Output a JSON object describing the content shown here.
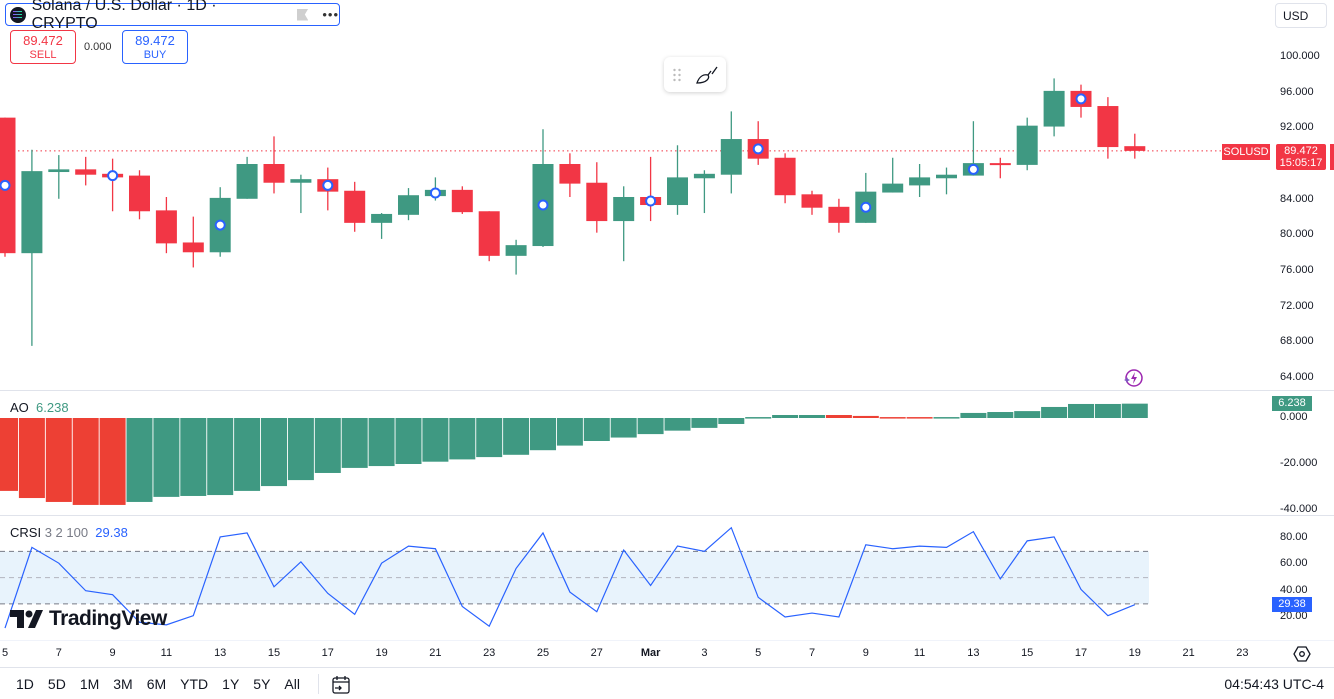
{
  "header": {
    "symbol_title": "Solana / U.S. Dollar · 1D · CRYPTO",
    "more_label": "•••",
    "sell_price": "89.472",
    "sell_label": "SELL",
    "spread": "0.000",
    "buy_price": "89.472",
    "buy_label": "BUY",
    "currency": "USD"
  },
  "icons": {
    "symbol_logo": "solana-logo",
    "flag": "flag-icon",
    "drag": "drag-handle-icon",
    "brush": "brush-icon",
    "lightning": "lightning-icon",
    "settings": "gear-icon",
    "calendar": "calendar-goto-icon"
  },
  "colors": {
    "up": "#3f9982",
    "down": "#f23645",
    "ao_up": "#3f9982",
    "ao_down": "#ed4034",
    "crsi_line": "#2962ff",
    "crsi_band": "#e8f3fc",
    "marker": "#2962ff",
    "accent": "#2962ff"
  },
  "price_axis": {
    "labels": [
      "100.000",
      "96.000",
      "92.000",
      "84.000",
      "80.000",
      "76.000",
      "72.000",
      "68.000",
      "64.000"
    ],
    "values": [
      100,
      96,
      92,
      84,
      80,
      76,
      72,
      68,
      64
    ]
  },
  "last_price": {
    "symbol": "SOLUSD",
    "price": "89.472",
    "countdown": "15:05:17",
    "value": 89.472
  },
  "ao": {
    "title": "AO",
    "value": "6.238",
    "axis_labels": [
      "0.000",
      "-20.000",
      "-40.000"
    ],
    "axis_values": [
      0,
      -20,
      -40
    ]
  },
  "crsi": {
    "title": "CRSI",
    "params": "3 2 100",
    "value": "29.38",
    "axis_labels": [
      "80.00",
      "60.00",
      "40.00",
      "20.00"
    ],
    "axis_values": [
      80,
      60,
      40,
      20
    ],
    "band": [
      30,
      70
    ],
    "mid": 50
  },
  "time_axis": {
    "labels": [
      "5",
      "7",
      "9",
      "11",
      "13",
      "15",
      "17",
      "19",
      "21",
      "23",
      "25",
      "27",
      "Mar",
      "3",
      "5",
      "7",
      "9",
      "11",
      "13",
      "15",
      "17",
      "19",
      "21",
      "23"
    ]
  },
  "branding": {
    "logo": "TradingView"
  },
  "bottom": {
    "ranges": [
      "1D",
      "5D",
      "1M",
      "3M",
      "6M",
      "YTD",
      "1Y",
      "5Y",
      "All"
    ],
    "clock": "04:54:43 UTC-4"
  },
  "chart_data": {
    "type": "candlestick",
    "candles": [
      [
        "Feb 5",
        93.2,
        93.2,
        77.6,
        78.0
      ],
      [
        "Feb 6",
        78.0,
        89.6,
        67.6,
        87.2
      ],
      [
        "Feb 7",
        87.1,
        89.0,
        84.1,
        87.4
      ],
      [
        "Feb 8",
        87.4,
        88.8,
        85.6,
        86.8
      ],
      [
        "Feb 9",
        86.9,
        88.6,
        82.7,
        86.5
      ],
      [
        "Feb 10",
        86.7,
        87.3,
        81.8,
        82.7
      ],
      [
        "Feb 11",
        82.8,
        84.3,
        78.0,
        79.1
      ],
      [
        "Feb 12",
        79.2,
        82.1,
        76.4,
        78.1
      ],
      [
        "Feb 13",
        78.1,
        85.4,
        77.6,
        84.2
      ],
      [
        "Feb 14",
        84.1,
        88.8,
        84.1,
        88.0
      ],
      [
        "Feb 15",
        88.0,
        91.1,
        84.7,
        85.9
      ],
      [
        "Feb 16",
        85.9,
        86.8,
        82.5,
        86.3
      ],
      [
        "Feb 17",
        86.3,
        87.6,
        82.8,
        84.9
      ],
      [
        "Feb 18",
        85.0,
        86.0,
        80.4,
        81.4
      ],
      [
        "Feb 19",
        81.4,
        82.5,
        79.6,
        82.4
      ],
      [
        "Feb 20",
        82.3,
        85.3,
        81.7,
        84.5
      ],
      [
        "Feb 21",
        84.4,
        86.5,
        83.9,
        85.1
      ],
      [
        "Feb 22",
        85.1,
        85.5,
        82.4,
        82.6
      ],
      [
        "Feb 23",
        82.7,
        82.7,
        77.1,
        77.7
      ],
      [
        "Feb 24",
        77.7,
        79.5,
        75.6,
        78.9
      ],
      [
        "Feb 25",
        78.8,
        91.9,
        78.7,
        88.0
      ],
      [
        "Feb 26",
        88.0,
        89.2,
        84.3,
        85.8
      ],
      [
        "Feb 27",
        85.9,
        88.2,
        80.3,
        81.6
      ],
      [
        "Feb 28",
        81.6,
        85.5,
        77.1,
        84.3
      ],
      [
        "Mar 1",
        84.3,
        88.8,
        81.6,
        83.4
      ],
      [
        "Mar 2",
        83.4,
        90.1,
        82.3,
        86.5
      ],
      [
        "Mar 3",
        86.4,
        87.3,
        82.5,
        86.9
      ],
      [
        "Mar 4",
        86.8,
        93.9,
        84.7,
        90.8
      ],
      [
        "Mar 5",
        90.8,
        92.8,
        87.9,
        88.6
      ],
      [
        "Mar 6",
        88.7,
        89.2,
        83.6,
        84.5
      ],
      [
        "Mar 7",
        84.6,
        85.0,
        82.3,
        83.1
      ],
      [
        "Mar 8",
        83.2,
        84.1,
        80.3,
        81.4
      ],
      [
        "Mar 9",
        81.4,
        87.0,
        81.4,
        84.9
      ],
      [
        "Mar 10",
        84.8,
        88.7,
        84.8,
        85.8
      ],
      [
        "Mar 11",
        85.6,
        88.0,
        84.3,
        86.5
      ],
      [
        "Mar 12",
        86.4,
        87.6,
        84.6,
        86.8
      ],
      [
        "Mar 13",
        86.7,
        92.8,
        86.7,
        88.1
      ],
      [
        "Mar 14",
        88.1,
        88.7,
        86.4,
        87.9
      ],
      [
        "Mar 15",
        87.9,
        93.2,
        87.3,
        92.3
      ],
      [
        "Mar 16",
        92.2,
        97.6,
        91.1,
        96.2
      ],
      [
        "Mar 17",
        96.2,
        96.9,
        93.2,
        94.4
      ],
      [
        "Mar 18",
        94.5,
        95.5,
        88.6,
        89.9
      ],
      [
        "Mar 19",
        90.0,
        91.4,
        88.6,
        89.472
      ]
    ],
    "markers": [
      "Feb 5",
      "Feb 9",
      "Feb 13",
      "Feb 17",
      "Feb 21",
      "Feb 25",
      "Mar 1",
      "Mar 5",
      "Mar 9",
      "Mar 13",
      "Mar 17"
    ],
    "ylim": [
      62,
      102
    ],
    "ao_values": [
      -31.7,
      -34.8,
      -36.5,
      -37.8,
      -37.8,
      -36.5,
      -34.3,
      -33.9,
      -33.5,
      -31.7,
      -29.6,
      -27.0,
      -23.9,
      -21.7,
      -20.9,
      -20.0,
      -19.0,
      -18.0,
      -17.0,
      -16.0,
      -14.0,
      -12.0,
      -10.0,
      -8.5,
      -7.0,
      -5.5,
      -4.3,
      -2.6,
      0.4,
      1.3,
      1.3,
      1.3,
      0.9,
      0.4,
      0.4,
      0.4,
      2.2,
      2.6,
      3.0,
      4.8,
      6.1,
      6.1,
      6.238
    ],
    "ao_colors": [
      "down",
      "down",
      "down",
      "down",
      "down",
      "up",
      "up",
      "up",
      "up",
      "up",
      "up",
      "up",
      "up",
      "up",
      "up",
      "up",
      "up",
      "up",
      "up",
      "up",
      "up",
      "up",
      "up",
      "up",
      "up",
      "up",
      "up",
      "up",
      "up",
      "up",
      "up",
      "down",
      "down",
      "down",
      "down",
      "up",
      "up",
      "up",
      "up",
      "up",
      "up",
      "up",
      "up"
    ],
    "crsi_values": [
      11.6,
      73,
      61,
      40,
      37,
      16,
      14,
      21,
      81,
      84,
      43,
      62,
      38,
      22,
      61,
      74,
      72,
      28,
      13,
      57,
      84,
      39,
      24,
      71,
      44,
      74,
      70,
      88,
      35,
      20,
      23,
      20,
      75,
      72,
      74,
      73,
      85,
      49,
      78,
      81,
      41,
      21,
      29.38
    ]
  }
}
